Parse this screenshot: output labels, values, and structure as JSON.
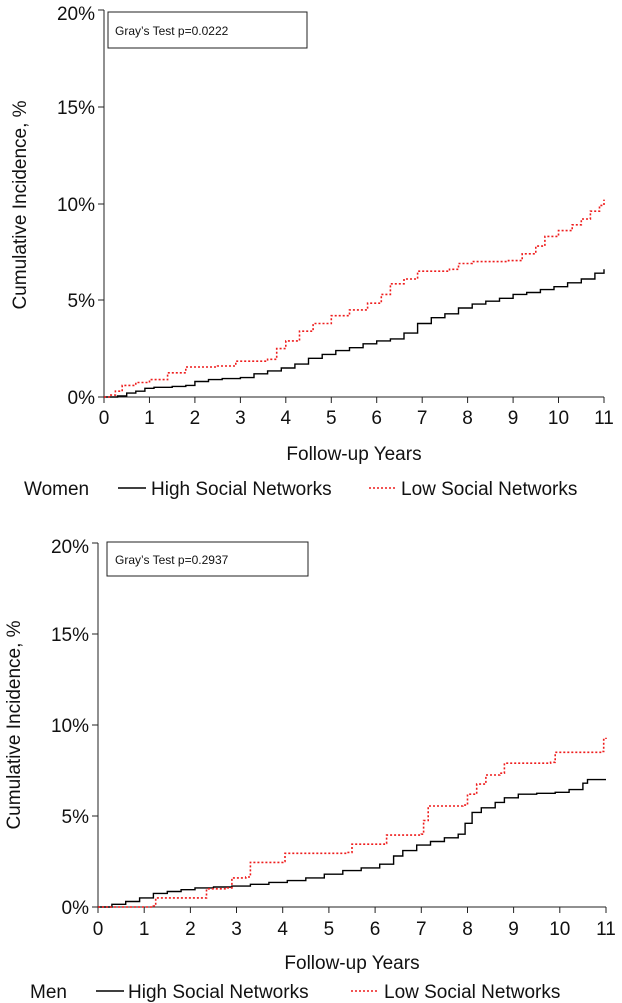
{
  "chart_data": [
    {
      "type": "line",
      "panel": "Women",
      "xlabel": "Follow-up Years",
      "ylabel": "Cumulative Incidence, %",
      "xlim": [
        0,
        11
      ],
      "ylim": [
        0,
        20
      ],
      "x_ticks": [
        "0",
        "1",
        "2",
        "3",
        "4",
        "5",
        "6",
        "7",
        "8",
        "9",
        "10",
        "11"
      ],
      "y_ticks": [
        "0%",
        "5%",
        "10%",
        "15%",
        "20%"
      ],
      "annotation": "Gray’s Test p=0.0222",
      "legend_title": "Women",
      "series": [
        {
          "name": "High Social Networks",
          "style": "solid",
          "color": "#000000",
          "points": [
            [
              0,
              0
            ],
            [
              0.3,
              0.05
            ],
            [
              0.5,
              0.2
            ],
            [
              0.7,
              0.3
            ],
            [
              0.9,
              0.45
            ],
            [
              1.1,
              0.5
            ],
            [
              1.5,
              0.55
            ],
            [
              1.8,
              0.6
            ],
            [
              2.0,
              0.8
            ],
            [
              2.3,
              0.9
            ],
            [
              2.6,
              0.95
            ],
            [
              3.0,
              1.0
            ],
            [
              3.3,
              1.2
            ],
            [
              3.6,
              1.35
            ],
            [
              3.9,
              1.5
            ],
            [
              4.2,
              1.7
            ],
            [
              4.5,
              2.0
            ],
            [
              4.8,
              2.2
            ],
            [
              5.1,
              2.4
            ],
            [
              5.4,
              2.55
            ],
            [
              5.7,
              2.75
            ],
            [
              6.0,
              2.9
            ],
            [
              6.3,
              3.0
            ],
            [
              6.6,
              3.3
            ],
            [
              6.9,
              3.8
            ],
            [
              7.2,
              4.1
            ],
            [
              7.5,
              4.3
            ],
            [
              7.8,
              4.6
            ],
            [
              8.1,
              4.8
            ],
            [
              8.4,
              4.95
            ],
            [
              8.7,
              5.1
            ],
            [
              9.0,
              5.3
            ],
            [
              9.3,
              5.4
            ],
            [
              9.6,
              5.55
            ],
            [
              9.9,
              5.7
            ],
            [
              10.2,
              5.9
            ],
            [
              10.5,
              6.1
            ],
            [
              10.8,
              6.4
            ],
            [
              11.0,
              6.6
            ]
          ]
        },
        {
          "name": "Low Social Networks",
          "style": "dotted",
          "color": "#ee1c1c",
          "points": [
            [
              0,
              0
            ],
            [
              0.15,
              0.1
            ],
            [
              0.25,
              0.3
            ],
            [
              0.4,
              0.6
            ],
            [
              0.7,
              0.75
            ],
            [
              1.0,
              0.9
            ],
            [
              1.4,
              1.25
            ],
            [
              1.8,
              1.55
            ],
            [
              2.5,
              1.6
            ],
            [
              2.9,
              1.85
            ],
            [
              3.6,
              1.95
            ],
            [
              3.8,
              2.5
            ],
            [
              4.0,
              2.9
            ],
            [
              4.3,
              3.4
            ],
            [
              4.6,
              3.8
            ],
            [
              5.0,
              4.2
            ],
            [
              5.4,
              4.5
            ],
            [
              5.8,
              4.85
            ],
            [
              6.1,
              5.3
            ],
            [
              6.3,
              5.85
            ],
            [
              6.6,
              6.1
            ],
            [
              6.9,
              6.5
            ],
            [
              7.6,
              6.6
            ],
            [
              7.8,
              6.9
            ],
            [
              8.1,
              7.0
            ],
            [
              8.9,
              7.05
            ],
            [
              9.2,
              7.4
            ],
            [
              9.5,
              7.8
            ],
            [
              9.7,
              8.3
            ],
            [
              10.0,
              8.6
            ],
            [
              10.3,
              8.9
            ],
            [
              10.5,
              9.2
            ],
            [
              10.7,
              9.6
            ],
            [
              10.9,
              9.9
            ],
            [
              11.0,
              10.2
            ]
          ]
        }
      ]
    },
    {
      "type": "line",
      "panel": "Men",
      "xlabel": "Follow-up Years",
      "ylabel": "Cumulative Incidence, %",
      "xlim": [
        0,
        11
      ],
      "ylim": [
        0,
        20
      ],
      "x_ticks": [
        "0",
        "1",
        "2",
        "3",
        "4",
        "5",
        "6",
        "7",
        "8",
        "9",
        "10",
        "11"
      ],
      "y_ticks": [
        "0%",
        "5%",
        "10%",
        "15%",
        "20%"
      ],
      "annotation": "Gray’s Test p=0.2937",
      "legend_title": "Men",
      "series": [
        {
          "name": "High Social Networks",
          "style": "solid",
          "color": "#000000",
          "points": [
            [
              0,
              0
            ],
            [
              0.3,
              0.15
            ],
            [
              0.6,
              0.3
            ],
            [
              0.9,
              0.5
            ],
            [
              1.2,
              0.75
            ],
            [
              1.5,
              0.85
            ],
            [
              1.8,
              0.95
            ],
            [
              2.1,
              1.05
            ],
            [
              2.5,
              1.1
            ],
            [
              2.9,
              1.15
            ],
            [
              3.3,
              1.25
            ],
            [
              3.7,
              1.35
            ],
            [
              4.1,
              1.45
            ],
            [
              4.5,
              1.6
            ],
            [
              4.9,
              1.8
            ],
            [
              5.3,
              2.0
            ],
            [
              5.7,
              2.15
            ],
            [
              6.1,
              2.35
            ],
            [
              6.4,
              2.8
            ],
            [
              6.6,
              3.1
            ],
            [
              6.9,
              3.4
            ],
            [
              7.2,
              3.6
            ],
            [
              7.5,
              3.8
            ],
            [
              7.8,
              4.0
            ],
            [
              7.95,
              4.6
            ],
            [
              8.1,
              5.2
            ],
            [
              8.3,
              5.45
            ],
            [
              8.6,
              5.75
            ],
            [
              8.8,
              6.0
            ],
            [
              9.1,
              6.2
            ],
            [
              9.5,
              6.25
            ],
            [
              9.9,
              6.3
            ],
            [
              10.2,
              6.45
            ],
            [
              10.5,
              6.8
            ],
            [
              10.6,
              7.0
            ],
            [
              11.0,
              7.0
            ]
          ]
        },
        {
          "name": "Low Social Networks",
          "style": "dotted",
          "color": "#ee1c1c",
          "points": [
            [
              0,
              0
            ],
            [
              1.2,
              0.05
            ],
            [
              1.25,
              0.5
            ],
            [
              2.3,
              0.5
            ],
            [
              2.35,
              1.0
            ],
            [
              2.8,
              1.05
            ],
            [
              2.9,
              1.6
            ],
            [
              3.2,
              1.65
            ],
            [
              3.3,
              2.45
            ],
            [
              4.0,
              2.5
            ],
            [
              4.05,
              2.95
            ],
            [
              5.4,
              3.0
            ],
            [
              5.5,
              3.45
            ],
            [
              6.2,
              3.5
            ],
            [
              6.25,
              3.95
            ],
            [
              7.0,
              4.0
            ],
            [
              7.05,
              4.75
            ],
            [
              7.15,
              5.55
            ],
            [
              7.9,
              5.6
            ],
            [
              8.0,
              6.2
            ],
            [
              8.2,
              6.75
            ],
            [
              8.4,
              7.25
            ],
            [
              8.7,
              7.35
            ],
            [
              8.8,
              7.9
            ],
            [
              9.8,
              7.95
            ],
            [
              9.9,
              8.5
            ],
            [
              10.9,
              8.55
            ],
            [
              10.95,
              9.2
            ],
            [
              11.0,
              9.3
            ]
          ]
        }
      ]
    }
  ]
}
